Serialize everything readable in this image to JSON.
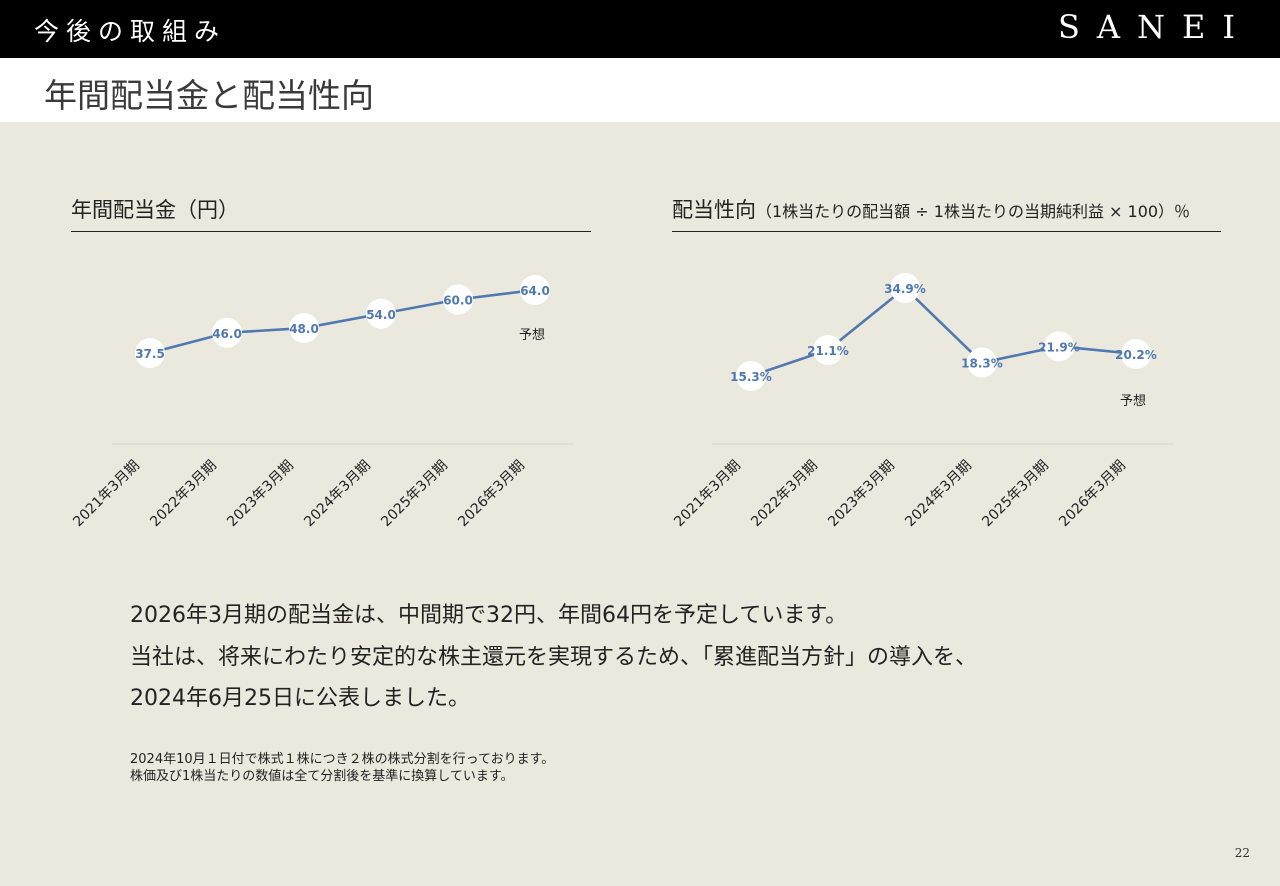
{
  "header": {
    "section": "今後の取組み",
    "brand": "SANEI"
  },
  "page_title": "年間配当金と配当性向",
  "chart_left_title": "年間配当金（円）",
  "chart_right_title": {
    "main": "配当性向",
    "sub": "（1株当たりの配当額 ÷ 1株当たりの当期純利益 × 100）％"
  },
  "chart_data": [
    {
      "type": "line",
      "title": "年間配当金（円）",
      "categories": [
        "2021年3月期",
        "2022年3月期",
        "2023年3月期",
        "2024年3月期",
        "2025年3月期",
        "2026年3月期"
      ],
      "values": [
        37.5,
        46.0,
        48.0,
        54.0,
        60.0,
        64.0
      ],
      "labels": [
        "37.5",
        "46.0",
        "48.0",
        "54.0",
        "60.0",
        "64.0"
      ],
      "annotation": "予想",
      "color": "#4f79b0"
    },
    {
      "type": "line",
      "title": "配当性向",
      "categories": [
        "2021年3月期",
        "2022年3月期",
        "2023年3月期",
        "2024年3月期",
        "2025年3月期",
        "2026年3月期"
      ],
      "values": [
        15.3,
        21.1,
        34.9,
        18.3,
        21.9,
        20.2
      ],
      "labels": [
        "15.3%",
        "21.1%",
        "34.9%",
        "18.3%",
        "21.9%",
        "20.2%"
      ],
      "annotation": "予想",
      "color": "#4f79b0"
    }
  ],
  "body_lines": [
    "2026年3月期の配当金は、中間期で32円、年間64円を予定しています。",
    "当社は、将来にわたり安定的な株主還元を実現するため、「累進配当方針」の導入を、",
    "2024年6月25日に公表しました。"
  ],
  "notes": [
    "2024年10月１日付で株式１株につき２株の株式分割を行っております。",
    "株価及び1株当たりの数値は全て分割後を基準に換算しています。"
  ],
  "page_number": "22"
}
